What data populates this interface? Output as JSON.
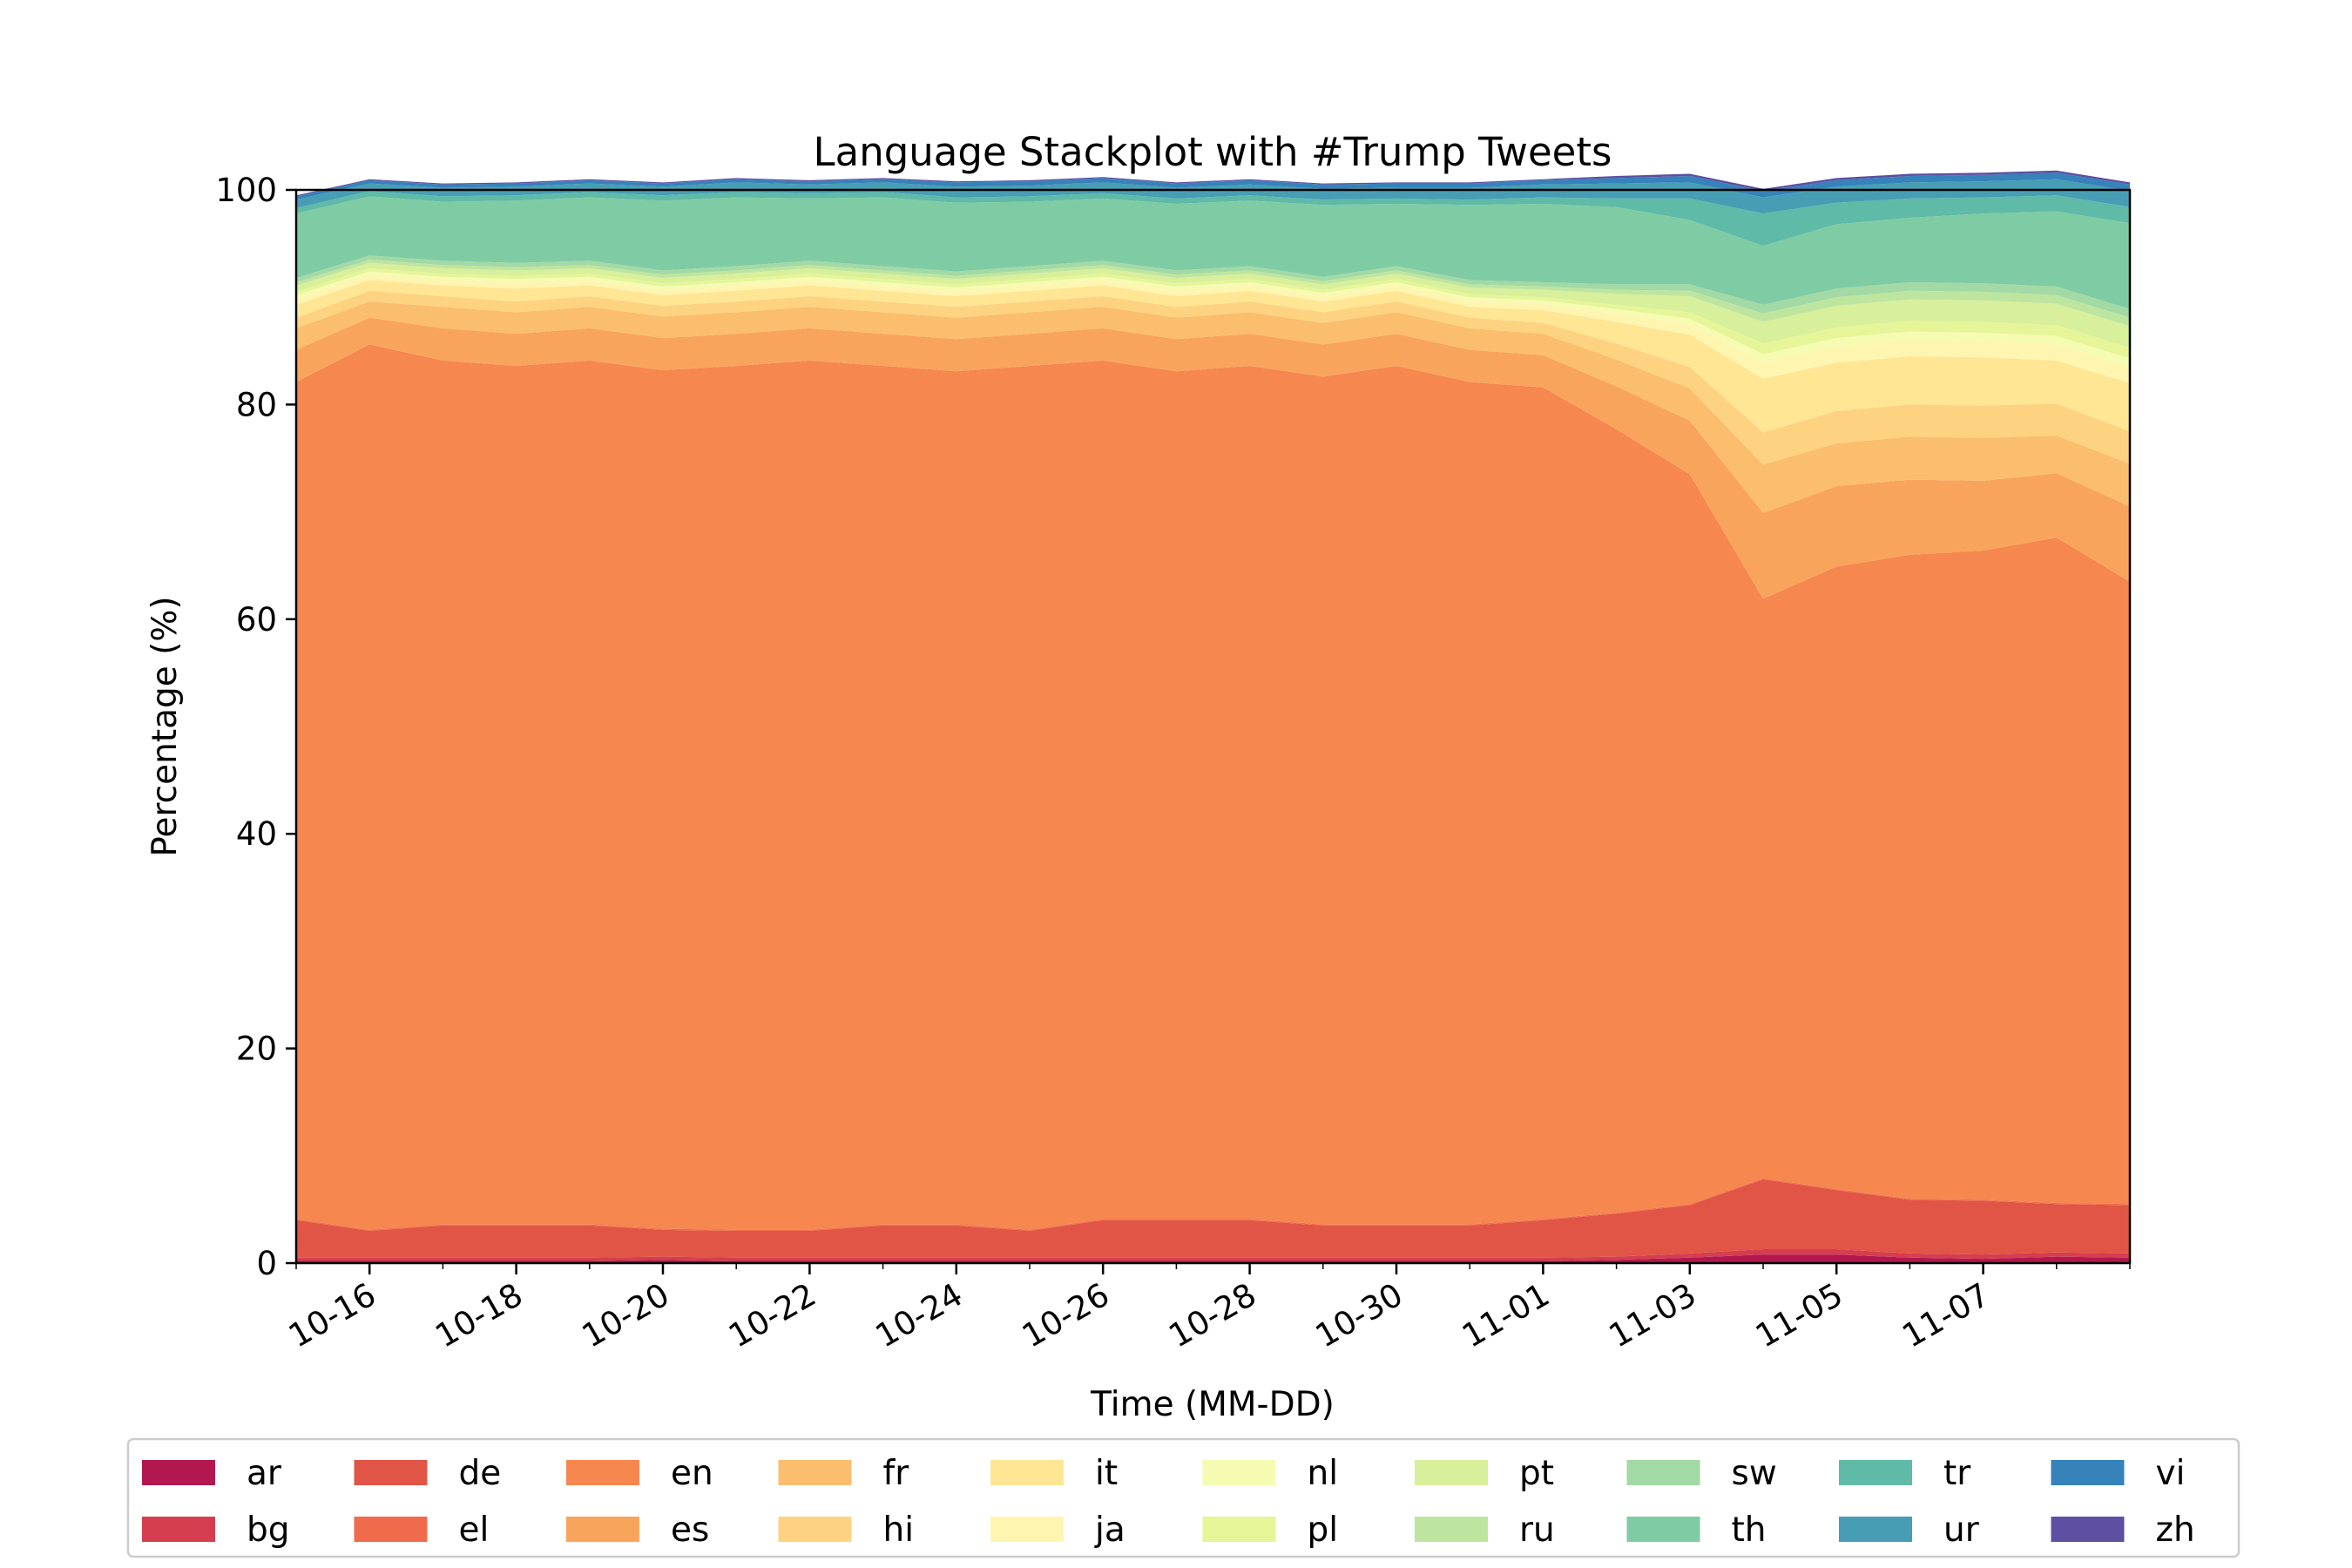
{
  "chart_data": {
    "type": "area",
    "stacked": true,
    "title": "Language Stackplot with #Trump Tweets",
    "xlabel": "Time (MM-DD)",
    "ylabel": "Percentage (%)",
    "ylim": [
      0,
      100
    ],
    "xlim": [
      "10-15",
      "11-09"
    ],
    "x_ticks": [
      "10-16",
      "10-18",
      "10-20",
      "10-22",
      "10-24",
      "10-26",
      "10-28",
      "10-30",
      "11-01",
      "11-03",
      "11-05",
      "11-07"
    ],
    "y_ticks": [
      0,
      20,
      40,
      60,
      80,
      100
    ],
    "legend_position": "bottom",
    "x": [
      "10-15",
      "10-16",
      "10-17",
      "10-18",
      "10-19",
      "10-20",
      "10-21",
      "10-22",
      "10-23",
      "10-24",
      "10-25",
      "10-26",
      "10-27",
      "10-28",
      "10-29",
      "10-30",
      "10-31",
      "11-01",
      "11-02",
      "11-03",
      "11-04",
      "11-05",
      "11-06",
      "11-07",
      "11-08",
      "11-09"
    ],
    "series": [
      {
        "name": "ar",
        "color": "#b2184f",
        "values": [
          0.2,
          0.2,
          0.2,
          0.2,
          0.2,
          0.3,
          0.2,
          0.2,
          0.2,
          0.2,
          0.2,
          0.2,
          0.2,
          0.2,
          0.2,
          0.2,
          0.2,
          0.2,
          0.3,
          0.5,
          0.8,
          0.8,
          0.5,
          0.4,
          0.6,
          0.5
        ]
      },
      {
        "name": "bg",
        "color": "#d53e4f",
        "values": [
          0.3,
          0.3,
          0.3,
          0.3,
          0.3,
          0.3,
          0.3,
          0.3,
          0.3,
          0.3,
          0.3,
          0.3,
          0.3,
          0.3,
          0.3,
          0.3,
          0.3,
          0.3,
          0.3,
          0.4,
          0.5,
          0.5,
          0.4,
          0.4,
          0.4,
          0.4
        ]
      },
      {
        "name": "de",
        "color": "#e15546",
        "values": [
          3.5,
          2.5,
          3.0,
          3.0,
          3.0,
          2.5,
          2.5,
          2.5,
          3.0,
          3.0,
          2.5,
          3.5,
          3.5,
          3.5,
          3.0,
          3.0,
          3.0,
          3.5,
          4.0,
          4.5,
          6.5,
          5.5,
          5.0,
          5.0,
          4.5,
          4.5
        ]
      },
      {
        "name": "el",
        "color": "#f06b4b",
        "values": [
          0.1,
          0.1,
          0.1,
          0.1,
          0.1,
          0.1,
          0.1,
          0.1,
          0.1,
          0.1,
          0.1,
          0.1,
          0.1,
          0.1,
          0.1,
          0.1,
          0.1,
          0.1,
          0.1,
          0.1,
          0.1,
          0.1,
          0.1,
          0.1,
          0.1,
          0.1
        ]
      },
      {
        "name": "en",
        "color": "#f5874f",
        "values": [
          78.0,
          82.5,
          80.5,
          80.0,
          80.5,
          80.0,
          80.5,
          81.0,
          80.0,
          79.5,
          80.5,
          80.0,
          79.0,
          79.5,
          79.0,
          80.0,
          78.5,
          77.5,
          73.0,
          68.0,
          54.0,
          58.0,
          60.0,
          60.5,
          62.0,
          58.0
        ]
      },
      {
        "name": "es",
        "color": "#f9a45d",
        "values": [
          3.0,
          2.5,
          3.0,
          3.0,
          3.0,
          3.0,
          3.0,
          3.0,
          3.0,
          3.0,
          3.0,
          3.0,
          3.0,
          3.0,
          3.0,
          3.0,
          3.0,
          3.0,
          4.0,
          5.0,
          8.0,
          7.5,
          7.0,
          6.5,
          6.0,
          7.0
        ]
      },
      {
        "name": "fr",
        "color": "#fbbd6e",
        "values": [
          2.0,
          1.5,
          2.0,
          2.0,
          2.0,
          2.0,
          2.0,
          2.0,
          2.0,
          2.0,
          2.0,
          2.0,
          2.0,
          2.0,
          2.0,
          2.0,
          2.0,
          2.0,
          2.5,
          3.0,
          4.5,
          4.0,
          4.0,
          4.0,
          3.5,
          4.0
        ]
      },
      {
        "name": "hi",
        "color": "#fdd382",
        "values": [
          1.0,
          1.0,
          1.0,
          1.0,
          1.0,
          1.0,
          1.0,
          1.0,
          1.0,
          1.0,
          1.0,
          1.0,
          1.0,
          1.0,
          1.0,
          1.0,
          1.0,
          1.0,
          1.5,
          2.0,
          3.0,
          3.0,
          3.0,
          3.0,
          3.0,
          3.0
        ]
      },
      {
        "name": "it",
        "color": "#fee695",
        "values": [
          1.2,
          1.0,
          1.0,
          1.2,
          1.0,
          1.0,
          1.0,
          1.0,
          1.0,
          1.0,
          1.0,
          1.0,
          1.0,
          1.0,
          1.0,
          1.0,
          1.0,
          1.2,
          2.0,
          3.0,
          5.0,
          4.5,
          4.5,
          4.5,
          4.0,
          4.5
        ]
      },
      {
        "name": "ja",
        "color": "#fef5b0",
        "values": [
          0.6,
          0.5,
          0.5,
          0.6,
          0.5,
          0.5,
          0.5,
          0.5,
          0.5,
          0.5,
          0.5,
          0.5,
          0.6,
          0.5,
          0.5,
          0.5,
          0.6,
          0.6,
          0.8,
          1.0,
          1.5,
          1.5,
          1.5,
          1.5,
          1.5,
          1.5
        ]
      },
      {
        "name": "nl",
        "color": "#f6fbb2",
        "values": [
          0.3,
          0.3,
          0.3,
          0.3,
          0.3,
          0.3,
          0.3,
          0.3,
          0.3,
          0.3,
          0.3,
          0.3,
          0.3,
          0.3,
          0.3,
          0.3,
          0.3,
          0.3,
          0.4,
          0.5,
          0.8,
          0.8,
          0.8,
          0.8,
          0.8,
          0.8
        ]
      },
      {
        "name": "pl",
        "color": "#e6f598",
        "values": [
          0.3,
          0.3,
          0.3,
          0.3,
          0.3,
          0.3,
          0.3,
          0.3,
          0.3,
          0.3,
          0.3,
          0.3,
          0.3,
          0.3,
          0.3,
          0.3,
          0.3,
          0.3,
          0.4,
          0.6,
          1.0,
          1.0,
          1.0,
          1.0,
          1.0,
          1.0
        ]
      },
      {
        "name": "pt",
        "color": "#d8ef9b",
        "values": [
          0.6,
          0.5,
          0.5,
          0.5,
          0.5,
          0.5,
          0.5,
          0.5,
          0.5,
          0.5,
          0.5,
          0.5,
          0.5,
          0.5,
          0.5,
          0.5,
          0.6,
          0.7,
          1.0,
          1.5,
          2.0,
          2.0,
          2.0,
          2.0,
          2.0,
          2.0
        ]
      },
      {
        "name": "ru",
        "color": "#bee5a0",
        "values": [
          0.3,
          0.3,
          0.3,
          0.3,
          0.3,
          0.3,
          0.3,
          0.3,
          0.3,
          0.3,
          0.3,
          0.3,
          0.3,
          0.3,
          0.3,
          0.3,
          0.3,
          0.3,
          0.4,
          0.5,
          0.8,
          0.8,
          0.8,
          0.8,
          0.8,
          0.8
        ]
      },
      {
        "name": "sw",
        "color": "#a2d9a4",
        "values": [
          0.4,
          0.4,
          0.4,
          0.4,
          0.4,
          0.4,
          0.4,
          0.4,
          0.4,
          0.4,
          0.4,
          0.4,
          0.4,
          0.4,
          0.4,
          0.4,
          0.4,
          0.4,
          0.5,
          0.6,
          0.8,
          0.8,
          0.8,
          0.8,
          0.8,
          0.8
        ]
      },
      {
        "name": "th",
        "color": "#7fcba4",
        "values": [
          6.0,
          5.5,
          5.5,
          5.8,
          5.9,
          6.5,
          6.4,
          5.8,
          6.4,
          6.4,
          6.0,
          5.8,
          6.2,
          6.1,
          6.7,
          5.8,
          7.0,
          7.3,
          7.2,
          6.0,
          5.5,
          6.0,
          6.0,
          6.5,
          7.0,
          8.0
        ]
      },
      {
        "name": "tr",
        "color": "#5fbaa8",
        "values": [
          0.5,
          0.5,
          0.5,
          0.5,
          0.5,
          0.5,
          0.5,
          0.5,
          0.5,
          0.5,
          0.5,
          0.5,
          0.5,
          0.5,
          0.5,
          0.5,
          0.5,
          0.6,
          0.8,
          2.0,
          3.0,
          2.0,
          1.8,
          1.5,
          1.5,
          1.5
        ]
      },
      {
        "name": "ur",
        "color": "#479eb4",
        "values": [
          0.8,
          0.7,
          0.8,
          0.8,
          0.8,
          0.8,
          0.9,
          0.8,
          0.9,
          1.0,
          1.0,
          1.0,
          1.0,
          1.0,
          1.0,
          1.0,
          1.1,
          1.2,
          1.4,
          1.5,
          1.5,
          1.5,
          1.5,
          1.5,
          1.5,
          1.5
        ]
      },
      {
        "name": "vi",
        "color": "#3682ba",
        "values": [
          0.3,
          0.3,
          0.3,
          0.3,
          0.3,
          0.3,
          0.3,
          0.3,
          0.3,
          0.4,
          0.4,
          0.4,
          0.4,
          0.4,
          0.4,
          0.4,
          0.4,
          0.4,
          0.5,
          0.6,
          0.6,
          0.6,
          0.6,
          0.6,
          0.6,
          0.6
        ]
      },
      {
        "name": "zh",
        "color": "#5e4fa2",
        "values": [
          0.1,
          0.1,
          0.1,
          0.1,
          0.1,
          0.1,
          0.1,
          0.1,
          0.1,
          0.1,
          0.1,
          0.1,
          0.1,
          0.1,
          0.1,
          0.1,
          0.1,
          0.1,
          0.2,
          0.2,
          0.2,
          0.2,
          0.2,
          0.2,
          0.2,
          0.2
        ]
      }
    ]
  }
}
